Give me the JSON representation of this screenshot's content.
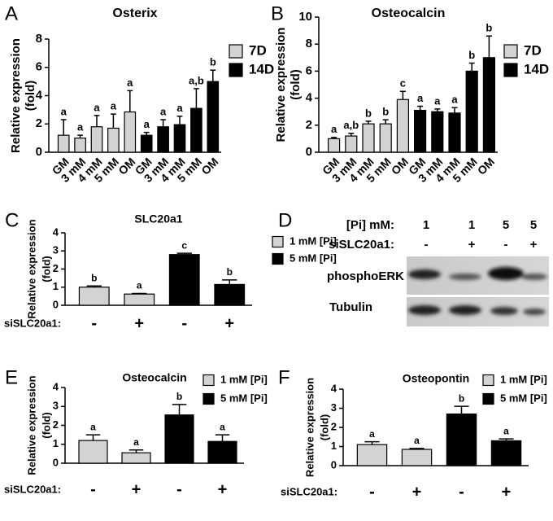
{
  "chart_data": [
    {
      "type": "bar",
      "panel": "A",
      "title": "Osterix",
      "ylabel": [
        "Relative expression",
        "(fold)"
      ],
      "categories": [
        "GM",
        "3 mM",
        "4 mM",
        "5 mM",
        "OM",
        "GM",
        "3 mM",
        "4 mM",
        "5 mM",
        "OM"
      ],
      "xtick_rotation": 45,
      "series": [
        {
          "name": "7D",
          "color": "#d3d3d3",
          "values": [
            1.2,
            1.0,
            1.8,
            1.7,
            2.85,
            null,
            null,
            null,
            null,
            null
          ],
          "errors": [
            1.1,
            0.2,
            0.8,
            1.0,
            1.5,
            null,
            null,
            null,
            null,
            null
          ],
          "letters": [
            "a",
            "a",
            "a",
            "a",
            "a",
            null,
            null,
            null,
            null,
            null
          ]
        },
        {
          "name": "14D",
          "color": "#000000",
          "values": [
            null,
            null,
            null,
            null,
            null,
            1.2,
            1.8,
            1.95,
            3.1,
            5.0
          ],
          "errors": [
            null,
            null,
            null,
            null,
            null,
            0.2,
            0.5,
            0.6,
            1.4,
            0.8
          ],
          "letters": [
            null,
            null,
            null,
            null,
            null,
            "a",
            "a",
            "a",
            "a,b",
            "b"
          ]
        }
      ],
      "ylim": [
        0,
        8
      ],
      "yticks": [
        0,
        2,
        4,
        6,
        8
      ],
      "legend": "right"
    },
    {
      "type": "bar",
      "panel": "B",
      "title": "Osteocalcin",
      "ylabel": [
        "Relative expression",
        "(fold)"
      ],
      "categories": [
        "GM",
        "3 mM",
        "4 mM",
        "5 mM",
        "OM",
        "GM",
        "3 mM",
        "4 mM",
        "5 mM",
        "OM"
      ],
      "xtick_rotation": 45,
      "series": [
        {
          "name": "7D",
          "color": "#d3d3d3",
          "values": [
            1.0,
            1.2,
            2.1,
            2.1,
            3.9,
            null,
            null,
            null,
            null,
            null
          ],
          "errors": [
            0.1,
            0.2,
            0.2,
            0.3,
            0.6,
            null,
            null,
            null,
            null,
            null
          ],
          "letters": [
            "a",
            "a,b",
            "b",
            "b",
            "c",
            null,
            null,
            null,
            null,
            null
          ]
        },
        {
          "name": "14D",
          "color": "#000000",
          "values": [
            null,
            null,
            null,
            null,
            null,
            3.1,
            3.0,
            2.9,
            6.0,
            7.0
          ],
          "errors": [
            null,
            null,
            null,
            null,
            null,
            0.3,
            0.2,
            0.4,
            0.6,
            1.6
          ],
          "letters": [
            null,
            null,
            null,
            null,
            null,
            "a",
            "a",
            "a",
            "b",
            "b"
          ]
        }
      ],
      "ylim": [
        0,
        10
      ],
      "yticks": [
        0,
        2,
        4,
        6,
        8,
        10
      ],
      "legend": "right"
    },
    {
      "type": "bar",
      "panel": "C",
      "title": "SLC20a1",
      "ylabel": [
        "Relative expression",
        "(fold)"
      ],
      "xlabel": "siSLC20a1:",
      "categories": [
        "-",
        "+",
        "-",
        "+"
      ],
      "series": [
        {
          "name": "1 mM [Pi]",
          "color": "#d3d3d3",
          "values": [
            1.0,
            0.62,
            null,
            null
          ],
          "errors": [
            0.07,
            0.03,
            null,
            null
          ],
          "letters": [
            "b",
            "a",
            null,
            null
          ]
        },
        {
          "name": "5 mM [Pi]",
          "color": "#000000",
          "values": [
            null,
            null,
            2.8,
            1.15
          ],
          "errors": [
            null,
            null,
            0.07,
            0.25
          ],
          "letters": [
            null,
            null,
            "c",
            "b"
          ]
        }
      ],
      "ylim": [
        0,
        4
      ],
      "yticks": [
        0,
        1,
        2,
        3,
        4
      ],
      "legend": "right"
    },
    {
      "type": "bar",
      "panel": "E",
      "title": "Osteocalcin",
      "ylabel": [
        "Relative expression",
        "(fold)"
      ],
      "xlabel": "siSLC20a1:",
      "categories": [
        "-",
        "+",
        "-",
        "+"
      ],
      "series": [
        {
          "name": "1 mM [Pi]",
          "color": "#d3d3d3",
          "values": [
            1.2,
            0.55,
            null,
            null
          ],
          "errors": [
            0.3,
            0.15,
            null,
            null
          ],
          "letters": [
            "a",
            "a",
            null,
            null
          ]
        },
        {
          "name": "5 mM [Pi]",
          "color": "#000000",
          "values": [
            null,
            null,
            2.55,
            1.15
          ],
          "errors": [
            null,
            null,
            0.55,
            0.35
          ],
          "letters": [
            null,
            null,
            "b",
            "a"
          ]
        }
      ],
      "ylim": [
        0,
        4
      ],
      "yticks": [
        0,
        1,
        2,
        3,
        4
      ],
      "legend": "right"
    },
    {
      "type": "bar",
      "panel": "F",
      "title": "Osteopontin",
      "ylabel": [
        "Relative expression",
        "(fold)"
      ],
      "xlabel": "siSLC20a1:",
      "categories": [
        "-",
        "+",
        "-",
        "+"
      ],
      "series": [
        {
          "name": "1 mM [Pi]",
          "color": "#d3d3d3",
          "values": [
            1.1,
            0.85,
            null,
            null
          ],
          "errors": [
            0.15,
            0.05,
            null,
            null
          ],
          "letters": [
            "a",
            "a",
            null,
            null
          ]
        },
        {
          "name": "5 mM [Pi]",
          "color": "#000000",
          "values": [
            null,
            null,
            2.7,
            1.3
          ],
          "errors": [
            null,
            null,
            0.4,
            0.1
          ],
          "letters": [
            null,
            null,
            "b",
            "a"
          ]
        }
      ],
      "ylim": [
        0,
        4
      ],
      "yticks": [
        0,
        1,
        2,
        3,
        4
      ],
      "legend": "right"
    }
  ],
  "blot": {
    "panel": "D",
    "rows": [
      {
        "label": "[Pi] mM:",
        "values": [
          "1",
          "1",
          "5",
          "5"
        ]
      },
      {
        "label": "siSLC20a1:",
        "values": [
          "-",
          "+",
          "-",
          "+"
        ]
      }
    ],
    "bands": [
      "phosphoERK",
      "Tubulin"
    ]
  }
}
